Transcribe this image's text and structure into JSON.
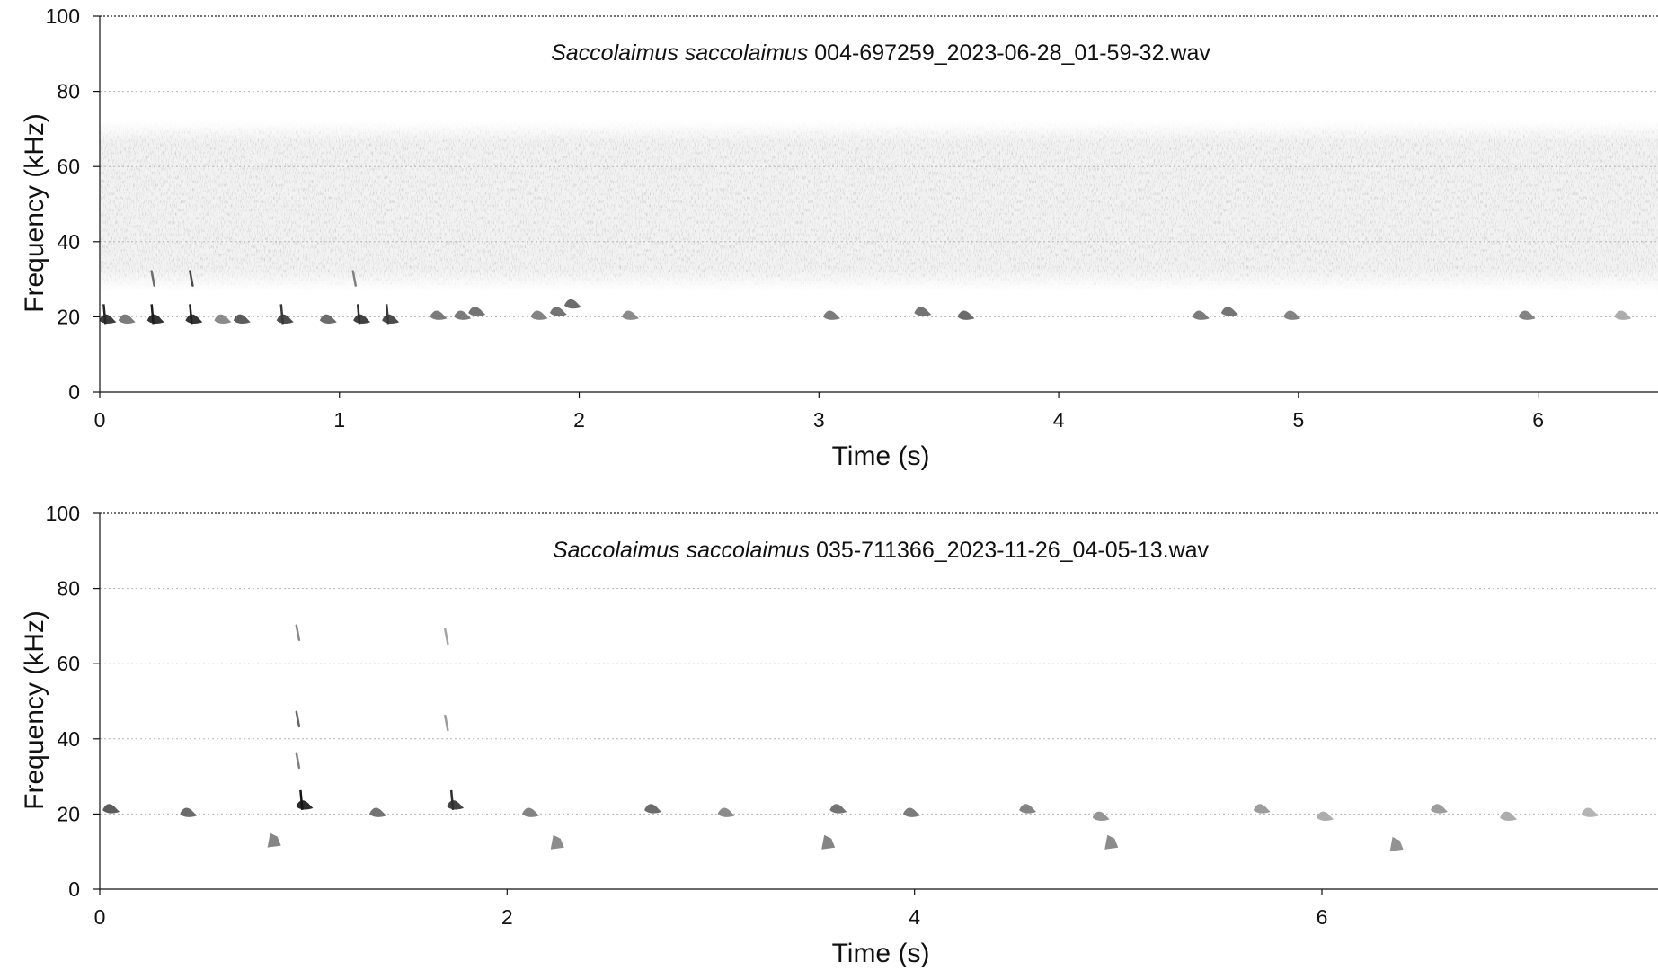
{
  "chart_data": [
    {
      "type": "heatmap",
      "subtype": "spectrogram",
      "title_species": "Saccolaimus saccolaimus",
      "title_file": "004-697259_2023-06-28_01-59-32.wav",
      "xlabel": "Time (s)",
      "ylabel": "Frequency (kHz)",
      "xlim": [
        0,
        6.5
      ],
      "ylim": [
        0,
        100
      ],
      "xticks": [
        0,
        1,
        2,
        3,
        4,
        5,
        6
      ],
      "xtick_labels": [
        "0",
        "1",
        "2",
        "3",
        "4",
        "5",
        "6"
      ],
      "yticks": [
        0,
        20,
        40,
        60,
        80,
        100
      ],
      "ytick_labels": [
        "0",
        "20",
        "40",
        "60",
        "80",
        "100"
      ],
      "grid": "horizontal dotted",
      "colormap": "greyscale",
      "noise_band_khz": [
        27,
        72
      ],
      "calls": [
        {
          "t": 0.02,
          "f": 20,
          "i": 0.9
        },
        {
          "t": 0.1,
          "f": 20,
          "i": 0.5
        },
        {
          "t": 0.22,
          "f": 20,
          "i": 0.95
        },
        {
          "t": 0.38,
          "f": 20,
          "i": 0.95
        },
        {
          "t": 0.5,
          "f": 20,
          "i": 0.4
        },
        {
          "t": 0.58,
          "f": 20,
          "i": 0.7
        },
        {
          "t": 0.76,
          "f": 20,
          "i": 0.8
        },
        {
          "t": 0.94,
          "f": 20,
          "i": 0.6
        },
        {
          "t": 1.08,
          "f": 20,
          "i": 0.85
        },
        {
          "t": 1.2,
          "f": 20,
          "i": 0.8
        },
        {
          "t": 1.4,
          "f": 21,
          "i": 0.5
        },
        {
          "t": 1.5,
          "f": 21,
          "i": 0.5
        },
        {
          "t": 1.56,
          "f": 22,
          "i": 0.55
        },
        {
          "t": 1.82,
          "f": 21,
          "i": 0.45
        },
        {
          "t": 1.9,
          "f": 22,
          "i": 0.55
        },
        {
          "t": 1.96,
          "f": 24,
          "i": 0.6
        },
        {
          "t": 2.2,
          "f": 21,
          "i": 0.4
        },
        {
          "t": 3.04,
          "f": 21,
          "i": 0.5
        },
        {
          "t": 3.42,
          "f": 22,
          "i": 0.55
        },
        {
          "t": 3.6,
          "f": 21,
          "i": 0.6
        },
        {
          "t": 4.58,
          "f": 21,
          "i": 0.5
        },
        {
          "t": 4.7,
          "f": 22,
          "i": 0.55
        },
        {
          "t": 4.96,
          "f": 21,
          "i": 0.45
        },
        {
          "t": 5.94,
          "f": 21,
          "i": 0.45
        },
        {
          "t": 6.34,
          "f": 21,
          "i": 0.2
        }
      ],
      "harmonics": [
        {
          "t": 0.22,
          "f": 30,
          "i": 0.5
        },
        {
          "t": 0.38,
          "f": 30,
          "i": 0.7
        },
        {
          "t": 1.06,
          "f": 30,
          "i": 0.4
        }
      ]
    },
    {
      "type": "heatmap",
      "subtype": "spectrogram",
      "title_species": "Saccolaimus saccolaimus",
      "title_file": "035-711366_2023-11-26_04-05-13.wav",
      "xlabel": "Time (s)",
      "ylabel": "Frequency (kHz)",
      "xlim": [
        0,
        7.65
      ],
      "ylim": [
        0,
        100
      ],
      "xticks": [
        0,
        2,
        4,
        6
      ],
      "xtick_labels": [
        "0",
        "2",
        "4",
        "6"
      ],
      "yticks": [
        0,
        20,
        40,
        60,
        80,
        100
      ],
      "ytick_labels": [
        "0",
        "20",
        "40",
        "60",
        "80",
        "100"
      ],
      "grid": "horizontal dotted",
      "colormap": "greyscale",
      "calls": [
        {
          "t": 0.04,
          "f": 22,
          "i": 0.7
        },
        {
          "t": 0.42,
          "f": 21,
          "i": 0.6
        },
        {
          "t": 0.99,
          "f": 23,
          "i": 1.0
        },
        {
          "t": 1.35,
          "f": 21,
          "i": 0.55
        },
        {
          "t": 1.73,
          "f": 23,
          "i": 0.85
        },
        {
          "t": 2.1,
          "f": 21,
          "i": 0.45
        },
        {
          "t": 2.7,
          "f": 22,
          "i": 0.6
        },
        {
          "t": 3.06,
          "f": 21,
          "i": 0.4
        },
        {
          "t": 3.61,
          "f": 22,
          "i": 0.55
        },
        {
          "t": 3.97,
          "f": 21,
          "i": 0.5
        },
        {
          "t": 4.54,
          "f": 22,
          "i": 0.45
        },
        {
          "t": 4.9,
          "f": 20,
          "i": 0.35
        },
        {
          "t": 5.69,
          "f": 22,
          "i": 0.3
        },
        {
          "t": 6.0,
          "f": 20,
          "i": 0.2
        },
        {
          "t": 6.56,
          "f": 22,
          "i": 0.3
        },
        {
          "t": 6.9,
          "f": 20,
          "i": 0.2
        },
        {
          "t": 7.3,
          "f": 21,
          "i": 0.15
        }
      ],
      "low_calls": [
        {
          "t": 0.85,
          "f": 13,
          "i": 0.6
        },
        {
          "t": 2.24,
          "f": 12.5,
          "i": 0.55
        },
        {
          "t": 3.57,
          "f": 12.5,
          "i": 0.6
        },
        {
          "t": 4.96,
          "f": 12.5,
          "i": 0.55
        },
        {
          "t": 6.36,
          "f": 12,
          "i": 0.5
        }
      ],
      "harmonics": [
        {
          "t": 0.97,
          "f": 68,
          "i": 0.35
        },
        {
          "t": 0.97,
          "f": 45,
          "i": 0.55
        },
        {
          "t": 0.97,
          "f": 34,
          "i": 0.4
        },
        {
          "t": 1.7,
          "f": 67,
          "i": 0.2
        },
        {
          "t": 1.7,
          "f": 44,
          "i": 0.25
        }
      ]
    }
  ]
}
